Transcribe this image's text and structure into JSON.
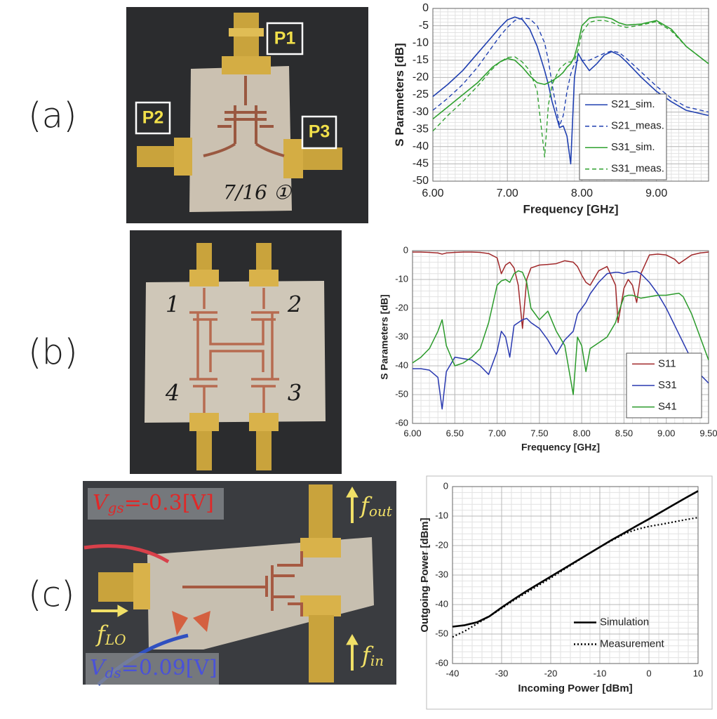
{
  "panel_labels": [
    "(a)",
    "(b)",
    "(c)"
  ],
  "photo_a": {
    "ports": [
      "P1",
      "P2",
      "P3"
    ],
    "note": "7/16 ①"
  },
  "photo_b": {
    "ports": [
      "1",
      "2",
      "3",
      "4"
    ]
  },
  "photo_c": {
    "vgs": {
      "symbol": "V",
      "subscript": "gs",
      "rest": "=-0.3[V]"
    },
    "vds": {
      "symbol": "V",
      "subscript": "ds",
      "rest": "=0.09[V]"
    },
    "fout": {
      "symbol": "f",
      "subscript": "out"
    },
    "flo": {
      "symbol": "f",
      "subscript": "LO"
    },
    "fin": {
      "symbol": "f",
      "subscript": "in"
    }
  },
  "chart_data": [
    {
      "type": "line",
      "xlabel": "Frequency [GHz]",
      "ylabel": "S Parameters [dB]",
      "xlim": [
        6,
        9.7
      ],
      "ylim": [
        -50,
        0
      ],
      "xticks": [
        {
          "value": 6,
          "label": "6.00"
        },
        {
          "value": 7,
          "label": "7.00"
        },
        {
          "value": 8,
          "label": "8.00"
        },
        {
          "value": 9,
          "label": "9.00"
        }
      ],
      "yticks": [
        -50,
        -45,
        -40,
        -35,
        -30,
        -25,
        -20,
        -15,
        -10,
        -5,
        0
      ],
      "grid": true,
      "minor_grid": [
        10,
        5
      ],
      "legend": "lower right",
      "x": [
        6.0,
        6.2,
        6.4,
        6.6,
        6.8,
        6.9,
        7.0,
        7.1,
        7.2,
        7.3,
        7.4,
        7.5,
        7.55,
        7.6,
        7.7,
        7.75,
        7.8,
        7.85,
        7.9,
        7.95,
        8.0,
        8.1,
        8.2,
        8.3,
        8.4,
        8.5,
        8.6,
        8.8,
        9.0,
        9.2,
        9.4,
        9.7
      ],
      "series": [
        {
          "name": "S21_sim.",
          "color": "#1f3fb0",
          "dash": "solid",
          "values": [
            -25.5,
            -22,
            -18,
            -13,
            -8,
            -5.5,
            -3.3,
            -2.5,
            -3.2,
            -6,
            -11,
            -18,
            -22,
            -27,
            -34.5,
            -34,
            -37,
            -45,
            -20,
            -13,
            -15,
            -18,
            -16,
            -13.5,
            -12.5,
            -13.5,
            -15.5,
            -20,
            -24,
            -27,
            -29.5,
            -31
          ]
        },
        {
          "name": "S21_meas.",
          "color": "#1f3fb0",
          "dash": "dashed",
          "values": [
            -29.5,
            -26,
            -22,
            -17,
            -11,
            -8,
            -5.5,
            -3.5,
            -2.8,
            -3,
            -5,
            -10,
            -15,
            -22,
            -34,
            -31,
            -24,
            -19,
            -16,
            -15,
            -15,
            -15,
            -14,
            -13,
            -12.3,
            -12.8,
            -14.5,
            -18.5,
            -22.5,
            -26,
            -28.5,
            -30
          ]
        },
        {
          "name": "S31_sim.",
          "color": "#2ea02e",
          "dash": "solid",
          "values": [
            -32,
            -28.5,
            -25,
            -21.5,
            -17,
            -15.5,
            -14.5,
            -15,
            -17,
            -19.5,
            -21.5,
            -22,
            -21.5,
            -21,
            -19.5,
            -18.5,
            -17,
            -16,
            -14,
            -10,
            -5,
            -2.8,
            -2.5,
            -2.5,
            -3,
            -4.2,
            -4.8,
            -4.5,
            -3.5,
            -6,
            -11,
            -16
          ]
        },
        {
          "name": "S31_meas.",
          "color": "#2ea02e",
          "dash": "dashed",
          "values": [
            -35.5,
            -31,
            -27,
            -22.5,
            -17.5,
            -15.5,
            -14.2,
            -14,
            -15.5,
            -18,
            -24,
            -43,
            -28,
            -22,
            -17.5,
            -16.5,
            -15.5,
            -15.5,
            -15,
            -12,
            -7,
            -4,
            -3.5,
            -3.5,
            -4,
            -5,
            -5.5,
            -4.8,
            -3.8,
            -6.5,
            -11,
            -16
          ]
        }
      ]
    },
    {
      "type": "line",
      "xlabel": "Frequency [GHz]",
      "ylabel": "S Parameters [dB]",
      "xlim": [
        6,
        9.5
      ],
      "ylim": [
        -60,
        0
      ],
      "xticks": [
        {
          "value": 6,
          "label": "6.00"
        },
        {
          "value": 6.5,
          "label": "6.50"
        },
        {
          "value": 7,
          "label": "7.00"
        },
        {
          "value": 7.5,
          "label": "7.50"
        },
        {
          "value": 8,
          "label": "8.00"
        },
        {
          "value": 8.5,
          "label": "8.50"
        },
        {
          "value": 9,
          "label": "9.00"
        },
        {
          "value": 9.5,
          "label": "9.50"
        }
      ],
      "yticks": [
        -60,
        -50,
        -40,
        -30,
        -20,
        -10,
        0
      ],
      "grid": true,
      "minor_grid": [
        5,
        5
      ],
      "legend": "lower right",
      "x": [
        6.0,
        6.1,
        6.2,
        6.3,
        6.35,
        6.4,
        6.5,
        6.6,
        6.7,
        6.8,
        6.9,
        7.0,
        7.05,
        7.1,
        7.15,
        7.2,
        7.25,
        7.3,
        7.35,
        7.4,
        7.5,
        7.6,
        7.7,
        7.8,
        7.9,
        7.95,
        8.0,
        8.05,
        8.1,
        8.2,
        8.3,
        8.4,
        8.43,
        8.5,
        8.55,
        8.6,
        8.65,
        8.7,
        8.8,
        8.9,
        9.0,
        9.1,
        9.15,
        9.2,
        9.3,
        9.4,
        9.5
      ],
      "series": [
        {
          "name": "S11",
          "color": "#a0282a",
          "dash": "solid",
          "values": [
            -0.5,
            -0.5,
            -0.6,
            -0.8,
            -1.2,
            -0.8,
            -0.6,
            -0.5,
            -0.5,
            -0.6,
            -1,
            -2.5,
            -8,
            -5,
            -4,
            -6,
            -12,
            -27,
            -10,
            -6,
            -5,
            -4.8,
            -4.5,
            -3.5,
            -4,
            -5.5,
            -8.5,
            -11,
            -12,
            -7,
            -5.5,
            -12,
            -25,
            -13,
            -10,
            -12,
            -18,
            -8,
            -1.5,
            -1.2,
            -1.5,
            -3,
            -4.5,
            -3.5,
            -1.5,
            -0.8,
            -0.5
          ]
        },
        {
          "name": "S31",
          "color": "#2838b0",
          "dash": "solid",
          "values": [
            -41,
            -41,
            -41.5,
            -44,
            -55,
            -42,
            -37,
            -37.5,
            -38,
            -40,
            -43,
            -35,
            -28,
            -30,
            -37,
            -26,
            -25,
            -24,
            -23.5,
            -25,
            -27,
            -31,
            -36,
            -31,
            -28,
            -22,
            -20,
            -18,
            -15,
            -11,
            -8,
            -7.5,
            -7.5,
            -8,
            -7.5,
            -7.3,
            -7.2,
            -8,
            -11,
            -15,
            -20,
            -26,
            -29,
            -32,
            -38,
            -43,
            -46
          ]
        },
        {
          "name": "S41",
          "color": "#2a9a2a",
          "dash": "solid",
          "values": [
            -39,
            -37,
            -34,
            -28,
            -24,
            -33,
            -40,
            -39,
            -37,
            -34,
            -25,
            -12,
            -10.5,
            -10,
            -11,
            -8,
            -7,
            -7.5,
            -11,
            -20,
            -24,
            -21,
            -28,
            -33,
            -50,
            -30,
            -33,
            -42,
            -34,
            -32,
            -30,
            -25,
            -22,
            -16,
            -15.5,
            -15.5,
            -16,
            -16.5,
            -16,
            -15.5,
            -15.5,
            -15,
            -14.8,
            -16,
            -22,
            -30,
            -38
          ]
        }
      ]
    },
    {
      "type": "line",
      "xlabel": "Incoming Power [dBm]",
      "ylabel": "Outgoing Power [dBm]",
      "xlim": [
        -40,
        10
      ],
      "ylim": [
        -60,
        0
      ],
      "xticks": [
        -40,
        -30,
        -20,
        -10,
        0,
        10
      ],
      "yticks": [
        -60,
        -50,
        -40,
        -30,
        -20,
        -10,
        0
      ],
      "grid": true,
      "minor_grid": [
        5,
        5
      ],
      "legend": "lower right",
      "x": [
        -40,
        -37.5,
        -35,
        -32.5,
        -30,
        -27.5,
        -25,
        -22.5,
        -20,
        -17.5,
        -15,
        -12.5,
        -10,
        -7.5,
        -5,
        -2.5,
        0,
        2.5,
        5,
        7.5,
        10
      ],
      "series": [
        {
          "name": "Simulation",
          "color": "#000000",
          "dash": "solid",
          "values": [
            -47.5,
            -47,
            -46,
            -44,
            -41,
            -38.2,
            -35.5,
            -33,
            -30.5,
            -28,
            -25.5,
            -23,
            -20.5,
            -18,
            -15.7,
            -13.3,
            -11,
            -8.6,
            -6.2,
            -3.8,
            -1.5
          ]
        },
        {
          "name": "Measurement",
          "color": "#000000",
          "dash": "dotted",
          "values": [
            -51,
            -49,
            -46.5,
            -44,
            -41.3,
            -38.5,
            -36,
            -33.5,
            -31,
            -28.3,
            -25.7,
            -23,
            -20.5,
            -18.2,
            -16,
            -14.5,
            -13.5,
            -12.8,
            -12,
            -11.2,
            -10.5
          ]
        }
      ]
    }
  ]
}
